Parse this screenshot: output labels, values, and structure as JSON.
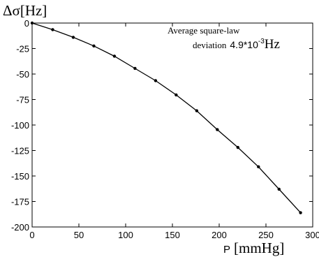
{
  "chart_data": {
    "type": "line",
    "ylabel": {
      "symbol": "Δσ",
      "unit": "[Hz]"
    },
    "xlabel": {
      "symbol": "P",
      "unit": "[mmHg]"
    },
    "annotation": {
      "line1": "Average square-law",
      "line2_prefix": "deviation",
      "line2_value": "4.9*10",
      "line2_exp": "-3",
      "line2_unit": "Hz"
    },
    "xlim": [
      0,
      300
    ],
    "ylim": [
      -200,
      0
    ],
    "x_ticks": [
      0,
      50,
      100,
      150,
      200,
      250,
      300
    ],
    "y_ticks": [
      0,
      -25,
      -50,
      -75,
      -100,
      -125,
      -150,
      -175,
      -200
    ],
    "grid": false,
    "series": [
      {
        "color": "#000000",
        "x": [
          0,
          22,
          44,
          66,
          88,
          110,
          132,
          154,
          176,
          198,
          220,
          242,
          264,
          287
        ],
        "y": [
          0,
          -6.5,
          -14,
          -22.5,
          -32.5,
          -44.5,
          -56.5,
          -70.5,
          -86,
          -104.5,
          -122,
          -141,
          -163,
          -186
        ]
      }
    ]
  }
}
